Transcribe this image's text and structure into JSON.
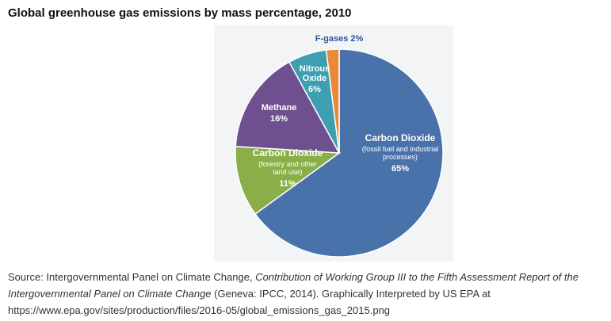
{
  "title": "Global greenhouse gas emissions by mass percentage, 2010",
  "chart_data": {
    "type": "pie",
    "title": "Global greenhouse gas emissions by mass percentage, 2010",
    "slices": [
      {
        "name": "Carbon Dioxide (fossil fuel and industrial processes)",
        "value": 65,
        "lines": [
          "Carbon Dioxide",
          "(fossil fuel and industrial",
          "processes)",
          "65%"
        ],
        "color": "#4a72aa"
      },
      {
        "name": "Carbon Dioxide (forestry and other land use)",
        "value": 11,
        "lines": [
          "Carbon Dioxide",
          "(forestry and other",
          "land use)",
          "11%"
        ],
        "color": "#8aae48"
      },
      {
        "name": "Methane",
        "value": 16,
        "lines": [
          "Methane",
          "16%"
        ],
        "color": "#6e4f8f"
      },
      {
        "name": "Nitrous Oxide",
        "value": 6,
        "lines": [
          "Nitrous",
          "Oxide",
          "6%"
        ],
        "color": "#3e9fb1"
      },
      {
        "name": "F-gases",
        "value": 2,
        "lines": [
          "F-gases 2%"
        ],
        "color": "#e9893a"
      }
    ]
  },
  "source": {
    "prefix": "Source: Intergovernmental Panel on Climate Change, ",
    "italic": "Contribution of Working Group III to the Fifth Assessment Report of the Intergovernmental Panel on Climate Change",
    "suffix": " (Geneva: IPCC, 2014). Graphically Interpreted by US EPA at https://www.epa.gov/sites/production/files/2016-05/global_emissions_gas_2015.png"
  }
}
